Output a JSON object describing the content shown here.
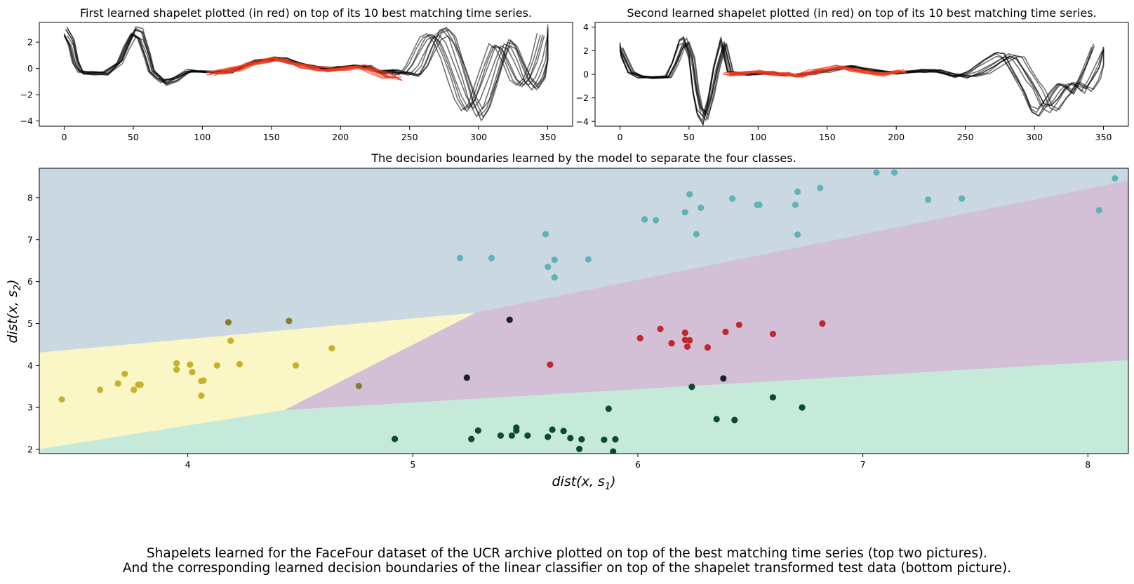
{
  "colors": {
    "series_black": "#000000",
    "shapelet_red": "#ee3a1c",
    "region_upper": "#c9d8e1",
    "region_middle": "#d3bfd6",
    "region_lower": "#c6ead9",
    "region_left": "#fbf6c6",
    "class_cyan": "#5fb3b8",
    "class_red": "#c1272d",
    "class_dark_green": "#0c4a2e",
    "class_yellow": "#c8b12a",
    "class_olive": "#8a7a33",
    "class_navy": "#1a1f3a"
  },
  "charts": {
    "shapelet1": {
      "title": "First learned shapelet plotted (in red) on top of its 10 best matching time series.",
      "xlim": [
        -18,
        368
      ],
      "ylim": [
        -4.4,
        3.5
      ],
      "xticks": [
        0,
        50,
        100,
        150,
        200,
        250,
        300,
        350
      ],
      "yticks": [
        -4,
        -2,
        0,
        2
      ]
    },
    "shapelet2": {
      "title": "Second learned shapelet plotted (in red) on top of its 10 best matching time series.",
      "xlim": [
        -18,
        368
      ],
      "ylim": [
        -4.4,
        4.4
      ],
      "xticks": [
        0,
        50,
        100,
        150,
        200,
        250,
        300,
        350
      ],
      "yticks": [
        -4,
        -2,
        0,
        2,
        4
      ]
    },
    "decision": {
      "title": "The decision boundaries learned by the model to separate the four classes.",
      "xlabel": "dist(x, s",
      "xlabel_sub": "1",
      "ylabel": "dist(x, s",
      "ylabel_sub": "2",
      "xlim": [
        3.34,
        8.18
      ],
      "ylim": [
        1.9,
        8.7
      ],
      "xticks": [
        4,
        5,
        6,
        7,
        8
      ],
      "yticks": [
        2,
        3,
        4,
        5,
        6,
        7,
        8
      ]
    }
  },
  "chart_data": [
    {
      "type": "line",
      "title": "First learned shapelet plotted (in red) on top of its 10 best matching time series.",
      "xlim": [
        -18,
        368
      ],
      "ylim": [
        -4.4,
        3.5
      ],
      "series": [
        {
          "role": "time_series",
          "color": "#000000",
          "x": [
            0,
            5,
            8,
            12,
            20,
            30,
            40,
            45,
            50,
            55,
            60,
            63,
            68,
            72,
            80,
            90,
            100,
            110,
            120,
            130,
            140,
            150,
            160,
            170,
            180,
            190,
            200,
            210,
            220,
            225,
            230,
            240,
            245,
            250,
            255,
            260,
            265,
            270,
            275,
            280,
            285,
            290,
            295,
            300,
            305,
            310,
            315,
            320,
            325,
            330,
            335,
            340,
            345,
            350
          ],
          "y": [
            2.9,
            2.0,
            0.5,
            -0.3,
            -0.4,
            -0.4,
            0.5,
            1.8,
            2.9,
            2.6,
            1.0,
            -0.2,
            -0.7,
            -1.1,
            -0.8,
            -0.2,
            -0.2,
            -0.3,
            -0.2,
            0.2,
            0.6,
            0.7,
            0.7,
            0.4,
            0.1,
            0.0,
            0.1,
            0.2,
            0.1,
            -0.2,
            -0.3,
            -0.2,
            -0.4,
            -0.5,
            0.3,
            1.5,
            2.5,
            2.8,
            2.2,
            0.8,
            -0.8,
            -2.5,
            -3.5,
            -2.8,
            -1.2,
            0.5,
            1.9,
            1.6,
            0.4,
            -0.9,
            -1.5,
            -0.8,
            0.6,
            2.9
          ]
        },
        {
          "role": "shapelet",
          "color": "#ee3a1c",
          "x": [
            107,
            115,
            125,
            135,
            145,
            155,
            165,
            175,
            185,
            195,
            205,
            215,
            225,
            235,
            242
          ],
          "y": [
            -0.4,
            -0.3,
            -0.1,
            0.3,
            0.6,
            0.7,
            0.5,
            0.2,
            0.0,
            -0.1,
            0.0,
            0.1,
            -0.2,
            -0.6,
            -0.8
          ]
        }
      ]
    },
    {
      "type": "line",
      "title": "Second learned shapelet plotted (in red) on top of its 10 best matching time series.",
      "xlim": [
        -18,
        368
      ],
      "ylim": [
        -4.4,
        4.4
      ],
      "series": [
        {
          "role": "time_series",
          "color": "#000000",
          "x": [
            0,
            3,
            8,
            15,
            25,
            35,
            40,
            45,
            48,
            52,
            55,
            58,
            62,
            66,
            70,
            75,
            80,
            90,
            100,
            110,
            120,
            130,
            140,
            150,
            160,
            170,
            180,
            190,
            200,
            210,
            220,
            230,
            240,
            250,
            260,
            270,
            280,
            285,
            290,
            295,
            300,
            305,
            310,
            315,
            320,
            325,
            330,
            335,
            340,
            345,
            350
          ],
          "y": [
            2.4,
            1.5,
            0.2,
            -0.2,
            -0.3,
            -0.2,
            1.0,
            2.6,
            2.9,
            1.5,
            -1.5,
            -3.2,
            -3.8,
            -2.0,
            0.5,
            2.8,
            0.2,
            0.0,
            0.1,
            0.1,
            0.0,
            -0.1,
            0.1,
            0.3,
            0.6,
            0.6,
            0.4,
            0.2,
            0.1,
            0.2,
            0.3,
            0.3,
            0.0,
            -0.2,
            0.2,
            1.0,
            1.7,
            1.5,
            0.5,
            -0.5,
            -1.5,
            -2.8,
            -3.2,
            -2.4,
            -1.5,
            -0.8,
            -1.0,
            -1.5,
            -0.5,
            0.8,
            2.3
          ]
        },
        {
          "role": "shapelet",
          "color": "#ee3a1c",
          "x": [
            78,
            90,
            100,
            110,
            120,
            130,
            140,
            150,
            160,
            170,
            180,
            190,
            200,
            206
          ],
          "y": [
            0.0,
            0.1,
            0.2,
            0.1,
            0.0,
            -0.1,
            0.2,
            0.4,
            0.6,
            0.4,
            0.2,
            0.0,
            0.2,
            0.3
          ]
        }
      ]
    },
    {
      "type": "scatter",
      "title": "The decision boundaries learned by the model to separate the four classes.",
      "xlabel": "dist(x, s1)",
      "ylabel": "dist(x, s2)",
      "xlim": [
        3.34,
        8.18
      ],
      "ylim": [
        1.9,
        8.7
      ],
      "regions": [
        {
          "color": "#c9d8e1",
          "polygon": [
            [
              3.34,
              8.7
            ],
            [
              8.18,
              8.7
            ],
            [
              8.18,
              8.4
            ],
            [
              5.28,
              5.25
            ],
            [
              3.34,
              4.3
            ]
          ]
        },
        {
          "color": "#fbf6c6",
          "polygon": [
            [
              3.34,
              4.3
            ],
            [
              5.28,
              5.25
            ],
            [
              4.43,
              2.93
            ],
            [
              3.34,
              2.0
            ]
          ]
        },
        {
          "color": "#d3bfd6",
          "polygon": [
            [
              5.28,
              5.25
            ],
            [
              8.18,
              8.4
            ],
            [
              8.18,
              4.12
            ],
            [
              4.43,
              2.93
            ]
          ]
        },
        {
          "color": "#c6ead9",
          "polygon": [
            [
              3.34,
              2.0
            ],
            [
              4.43,
              2.93
            ],
            [
              8.18,
              4.12
            ],
            [
              8.18,
              1.9
            ],
            [
              3.34,
              1.9
            ]
          ]
        }
      ],
      "series": [
        {
          "class": "cyan",
          "color": "#5fb3b8",
          "points": [
            [
              5.21,
              6.56
            ],
            [
              5.35,
              6.56
            ],
            [
              5.59,
              7.13
            ],
            [
              5.6,
              6.35
            ],
            [
              5.63,
              6.1
            ],
            [
              5.63,
              6.52
            ],
            [
              5.78,
              6.53
            ],
            [
              6.03,
              7.48
            ],
            [
              6.08,
              7.46
            ],
            [
              6.21,
              7.65
            ],
            [
              6.23,
              8.08
            ],
            [
              6.26,
              7.13
            ],
            [
              6.28,
              7.76
            ],
            [
              6.42,
              7.98
            ],
            [
              6.53,
              7.83
            ],
            [
              6.54,
              7.83
            ],
            [
              6.7,
              7.83
            ],
            [
              6.71,
              8.14
            ],
            [
              6.71,
              7.12
            ],
            [
              6.81,
              8.23
            ],
            [
              7.06,
              8.6
            ],
            [
              7.14,
              8.6
            ],
            [
              7.29,
              7.95
            ],
            [
              7.44,
              7.98
            ],
            [
              8.05,
              7.7
            ],
            [
              8.12,
              8.46
            ]
          ]
        },
        {
          "class": "red",
          "color": "#c1272d",
          "points": [
            [
              5.61,
              4.02
            ],
            [
              6.01,
              4.65
            ],
            [
              6.1,
              4.87
            ],
            [
              6.15,
              4.53
            ],
            [
              6.21,
              4.61
            ],
            [
              6.21,
              4.78
            ],
            [
              6.22,
              4.45
            ],
            [
              6.23,
              4.6
            ],
            [
              6.31,
              4.43
            ],
            [
              6.39,
              4.8
            ],
            [
              6.45,
              4.97
            ],
            [
              6.6,
              4.75
            ],
            [
              6.82,
              5.0
            ]
          ]
        },
        {
          "class": "dark-green",
          "color": "#0c4a2e",
          "points": [
            [
              4.92,
              2.25
            ],
            [
              5.26,
              2.25
            ],
            [
              5.29,
              2.45
            ],
            [
              5.39,
              2.33
            ],
            [
              5.44,
              2.33
            ],
            [
              5.46,
              2.45
            ],
            [
              5.46,
              2.52
            ],
            [
              5.51,
              2.33
            ],
            [
              5.6,
              2.3
            ],
            [
              5.62,
              2.47
            ],
            [
              5.67,
              2.44
            ],
            [
              5.7,
              2.27
            ],
            [
              5.74,
              2.01
            ],
            [
              5.75,
              2.24
            ],
            [
              5.85,
              2.23
            ],
            [
              5.87,
              2.97
            ],
            [
              5.89,
              1.95
            ],
            [
              5.9,
              2.24
            ],
            [
              6.24,
              3.49
            ],
            [
              6.35,
              2.72
            ],
            [
              6.43,
              2.7
            ],
            [
              6.6,
              3.24
            ],
            [
              6.73,
              3.0
            ]
          ]
        },
        {
          "class": "yellow",
          "color": "#c8b12a",
          "points": [
            [
              3.44,
              3.19
            ],
            [
              3.61,
              3.42
            ],
            [
              3.69,
              3.57
            ],
            [
              3.72,
              3.8
            ],
            [
              3.76,
              3.42
            ],
            [
              3.78,
              3.54
            ],
            [
              3.79,
              3.54
            ],
            [
              3.95,
              4.05
            ],
            [
              3.95,
              3.9
            ],
            [
              4.01,
              4.02
            ],
            [
              4.02,
              3.84
            ],
            [
              4.06,
              3.28
            ],
            [
              4.06,
              3.63
            ],
            [
              4.07,
              3.64
            ],
            [
              4.13,
              4.0
            ],
            [
              4.19,
              4.59
            ],
            [
              4.23,
              4.03
            ],
            [
              4.48,
              4.0
            ],
            [
              4.64,
              4.41
            ]
          ]
        },
        {
          "class": "olive",
          "color": "#8a7a33",
          "points": [
            [
              4.18,
              5.03
            ],
            [
              4.45,
              5.06
            ],
            [
              4.76,
              3.51
            ]
          ]
        },
        {
          "class": "navy",
          "color": "#1a1f3a",
          "points": [
            [
              5.24,
              3.71
            ],
            [
              5.43,
              5.09
            ],
            [
              6.38,
              3.69
            ]
          ]
        }
      ]
    }
  ],
  "caption": {
    "line1": "Shapelets learned for the FaceFour dataset of the UCR archive plotted on top of the best matching time series (top two pictures).",
    "line2": "And the corresponding learned decision boundaries of the linear classifier on top of the shapelet transformed test data (bottom picture)."
  }
}
